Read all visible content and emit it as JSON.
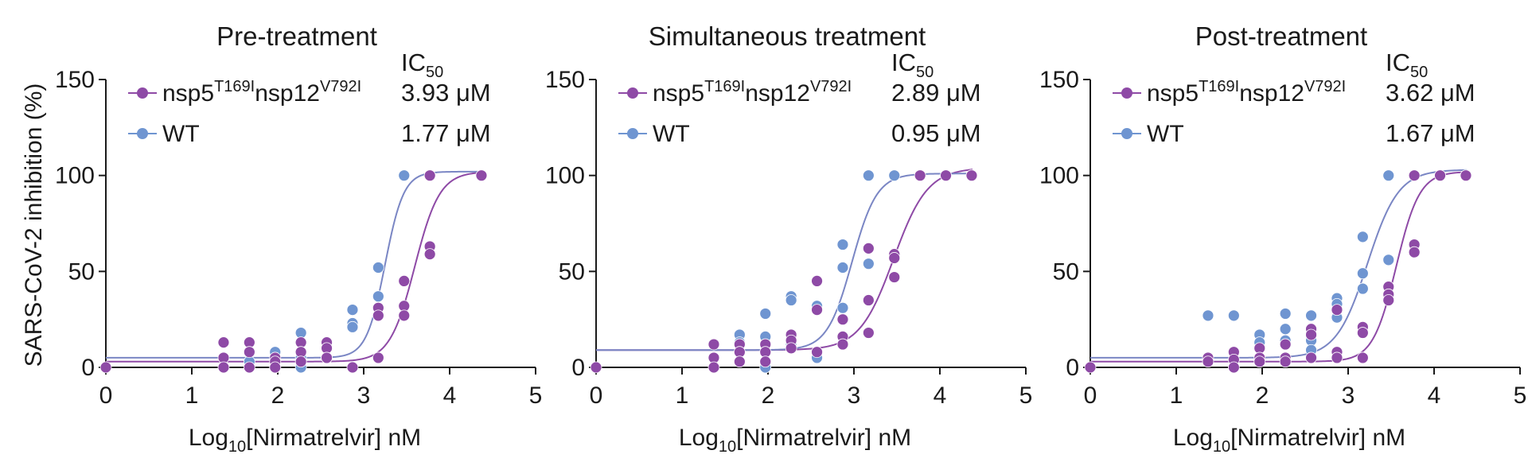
{
  "figure": {
    "ylabel": "SARS-CoV-2 inhibition (%)",
    "xlabel": {
      "prefix": "Log",
      "sub": "10",
      "suffix": "[Nirmatrelvir] nM"
    },
    "ic50_label": {
      "main": "IC",
      "sub": "50"
    }
  },
  "colors": {
    "mutant": "#8e4aa6",
    "wt": "#6f95d1",
    "mutant_curve": "#8e4aa6",
    "wt_curve": "#7a86c4"
  },
  "chart_data": [
    {
      "type": "scatter",
      "title": "Pre-treatment",
      "xlim": [
        0,
        5
      ],
      "ylim": [
        0,
        150
      ],
      "xticks": [
        "0",
        "1",
        "2",
        "3",
        "4",
        "5"
      ],
      "yticks": [
        "0",
        "50",
        "100",
        "150"
      ],
      "grid": false,
      "legend_position": "top-left",
      "series": [
        {
          "name": "nsp5T169Insp12V792I",
          "name_parts": [
            "nsp5",
            "T169I",
            "nsp12",
            "V792I"
          ],
          "color": "#8e4aa6",
          "ic50": "3.93 μM",
          "fit": {
            "bottom": 3,
            "top": 102,
            "logIC50": 3.594,
            "hill": 3.0
          },
          "points": [
            [
              0,
              0
            ],
            [
              1.37,
              13
            ],
            [
              1.37,
              5
            ],
            [
              1.37,
              0
            ],
            [
              1.67,
              13
            ],
            [
              1.67,
              8
            ],
            [
              1.67,
              0
            ],
            [
              1.97,
              5
            ],
            [
              1.97,
              3
            ],
            [
              1.97,
              0
            ],
            [
              2.27,
              13
            ],
            [
              2.27,
              8
            ],
            [
              2.27,
              3
            ],
            [
              2.57,
              13
            ],
            [
              2.57,
              10
            ],
            [
              2.57,
              5
            ],
            [
              2.87,
              0
            ],
            [
              3.17,
              31
            ],
            [
              3.17,
              27
            ],
            [
              3.17,
              5
            ],
            [
              3.47,
              45
            ],
            [
              3.47,
              32
            ],
            [
              3.47,
              27
            ],
            [
              3.77,
              63
            ],
            [
              3.77,
              59
            ],
            [
              3.77,
              100
            ],
            [
              4.37,
              100
            ]
          ]
        },
        {
          "name": "WT",
          "color": "#6f95d1",
          "ic50": "1.77 μM",
          "fit": {
            "bottom": 5,
            "top": 102,
            "logIC50": 3.248,
            "hill": 4.0
          },
          "points": [
            [
              1.67,
              3
            ],
            [
              1.97,
              8
            ],
            [
              1.97,
              0
            ],
            [
              2.27,
              18
            ],
            [
              2.27,
              5
            ],
            [
              2.27,
              0
            ],
            [
              2.57,
              10
            ],
            [
              2.57,
              5
            ],
            [
              2.87,
              30
            ],
            [
              2.87,
              23
            ],
            [
              2.87,
              21
            ],
            [
              3.17,
              52
            ],
            [
              3.17,
              37
            ],
            [
              3.17,
              31
            ],
            [
              3.47,
              100
            ]
          ]
        }
      ]
    },
    {
      "type": "scatter",
      "title": "Simultaneous treatment",
      "xlim": [
        0,
        5
      ],
      "ylim": [
        0,
        150
      ],
      "xticks": [
        "0",
        "1",
        "2",
        "3",
        "4",
        "5"
      ],
      "yticks": [
        "0",
        "50",
        "100",
        "150"
      ],
      "grid": false,
      "legend_position": "top-left",
      "series": [
        {
          "name": "nsp5T169Insp12V792I",
          "name_parts": [
            "nsp5",
            "T169I",
            "nsp12",
            "V792I"
          ],
          "color": "#8e4aa6",
          "ic50": "2.89 μM",
          "fit": {
            "bottom": 9,
            "top": 104,
            "logIC50": 3.461,
            "hill": 2.2
          },
          "points": [
            [
              0,
              0
            ],
            [
              1.37,
              12
            ],
            [
              1.37,
              5
            ],
            [
              1.37,
              0
            ],
            [
              1.67,
              12
            ],
            [
              1.67,
              8
            ],
            [
              1.67,
              3
            ],
            [
              1.97,
              12
            ],
            [
              1.97,
              8
            ],
            [
              1.97,
              3
            ],
            [
              2.27,
              17
            ],
            [
              2.27,
              14
            ],
            [
              2.27,
              10
            ],
            [
              2.57,
              45
            ],
            [
              2.57,
              30
            ],
            [
              2.57,
              8
            ],
            [
              2.87,
              25
            ],
            [
              2.87,
              16
            ],
            [
              2.87,
              12
            ],
            [
              3.17,
              62
            ],
            [
              3.17,
              35
            ],
            [
              3.17,
              18
            ],
            [
              3.47,
              59
            ],
            [
              3.47,
              57
            ],
            [
              3.47,
              47
            ],
            [
              3.77,
              100
            ],
            [
              4.07,
              100
            ],
            [
              4.37,
              100
            ]
          ]
        },
        {
          "name": "WT",
          "color": "#6f95d1",
          "ic50": "0.95 μM",
          "fit": {
            "bottom": 9,
            "top": 101,
            "logIC50": 2.978,
            "hill": 3.0
          },
          "points": [
            [
              1.67,
              17
            ],
            [
              1.67,
              13
            ],
            [
              1.97,
              28
            ],
            [
              1.97,
              16
            ],
            [
              1.97,
              0
            ],
            [
              2.27,
              37
            ],
            [
              2.27,
              35
            ],
            [
              2.27,
              12
            ],
            [
              2.57,
              32
            ],
            [
              2.57,
              8
            ],
            [
              2.57,
              5
            ],
            [
              2.87,
              64
            ],
            [
              2.87,
              52
            ],
            [
              2.87,
              31
            ],
            [
              3.17,
              54
            ],
            [
              3.17,
              100
            ],
            [
              3.47,
              100
            ]
          ]
        }
      ]
    },
    {
      "type": "scatter",
      "title": "Post-treatment",
      "xlim": [
        0,
        5
      ],
      "ylim": [
        0,
        150
      ],
      "xticks": [
        "0",
        "1",
        "2",
        "3",
        "4",
        "5"
      ],
      "yticks": [
        "0",
        "50",
        "100",
        "150"
      ],
      "grid": false,
      "legend_position": "top-left",
      "series": [
        {
          "name": "nsp5T169Insp12V792I",
          "name_parts": [
            "nsp5",
            "T169I",
            "nsp12",
            "V792I"
          ],
          "color": "#8e4aa6",
          "ic50": "3.62 μM",
          "fit": {
            "bottom": 3,
            "top": 102,
            "logIC50": 3.559,
            "hill": 3.2
          },
          "points": [
            [
              0,
              0
            ],
            [
              1.37,
              5
            ],
            [
              1.37,
              3
            ],
            [
              1.67,
              8
            ],
            [
              1.67,
              4
            ],
            [
              1.67,
              0
            ],
            [
              1.97,
              10
            ],
            [
              1.97,
              5
            ],
            [
              1.97,
              3
            ],
            [
              2.27,
              12
            ],
            [
              2.27,
              5
            ],
            [
              2.27,
              3
            ],
            [
              2.57,
              20
            ],
            [
              2.57,
              17
            ],
            [
              2.57,
              5
            ],
            [
              2.87,
              30
            ],
            [
              2.87,
              8
            ],
            [
              2.87,
              5
            ],
            [
              3.17,
              21
            ],
            [
              3.17,
              18
            ],
            [
              3.17,
              5
            ],
            [
              3.47,
              42
            ],
            [
              3.47,
              38
            ],
            [
              3.47,
              35
            ],
            [
              3.77,
              64
            ],
            [
              3.77,
              60
            ],
            [
              3.77,
              100
            ],
            [
              4.07,
              100
            ],
            [
              4.37,
              100
            ]
          ]
        },
        {
          "name": "WT",
          "color": "#6f95d1",
          "ic50": "1.67 μM",
          "fit": {
            "bottom": 5,
            "top": 103,
            "logIC50": 3.224,
            "hill": 2.4
          },
          "points": [
            [
              1.37,
              27
            ],
            [
              1.67,
              27
            ],
            [
              1.97,
              17
            ],
            [
              1.97,
              13
            ],
            [
              2.27,
              28
            ],
            [
              2.27,
              20
            ],
            [
              2.27,
              14
            ],
            [
              2.57,
              27
            ],
            [
              2.57,
              14
            ],
            [
              2.57,
              9
            ],
            [
              2.87,
              36
            ],
            [
              2.87,
              33
            ],
            [
              2.87,
              26
            ],
            [
              3.17,
              68
            ],
            [
              3.17,
              49
            ],
            [
              3.17,
              41
            ],
            [
              3.47,
              56
            ],
            [
              3.47,
              100
            ]
          ]
        }
      ]
    }
  ]
}
